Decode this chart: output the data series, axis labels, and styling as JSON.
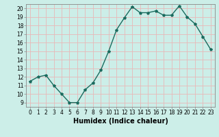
{
  "x": [
    0,
    1,
    2,
    3,
    4,
    5,
    6,
    7,
    8,
    9,
    10,
    11,
    12,
    13,
    14,
    15,
    16,
    17,
    18,
    19,
    20,
    21,
    22,
    23
  ],
  "y": [
    11.5,
    12.0,
    12.2,
    11.0,
    10.0,
    9.0,
    9.0,
    10.5,
    11.3,
    12.8,
    15.0,
    17.5,
    18.9,
    20.2,
    19.5,
    19.5,
    19.7,
    19.2,
    19.2,
    20.3,
    19.0,
    18.2,
    16.7,
    15.2
  ],
  "line_color": "#1a6b5e",
  "marker": "*",
  "marker_size": 3,
  "xlabel": "Humidex (Indice chaleur)",
  "bg_color": "#cceee8",
  "grid_color": "#e8b8b8",
  "ylim": [
    8.5,
    20.5
  ],
  "xlim": [
    -0.5,
    23.5
  ],
  "yticks": [
    9,
    10,
    11,
    12,
    13,
    14,
    15,
    16,
    17,
    18,
    19,
    20
  ],
  "xticks": [
    0,
    1,
    2,
    3,
    4,
    5,
    6,
    7,
    8,
    9,
    10,
    11,
    12,
    13,
    14,
    15,
    16,
    17,
    18,
    19,
    20,
    21,
    22,
    23
  ],
  "tick_fontsize": 5.5,
  "label_fontsize": 7,
  "line_width": 1.0
}
